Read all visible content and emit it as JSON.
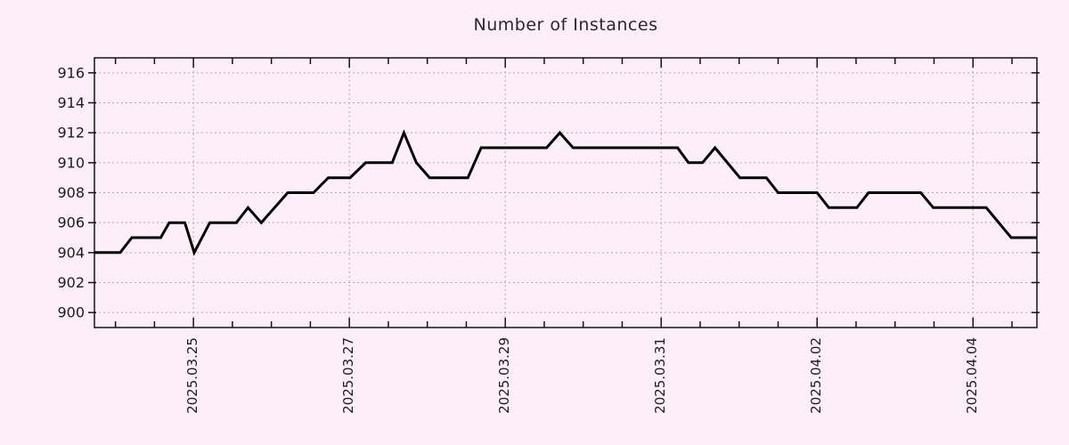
{
  "page": {
    "background_color": "#fceff9"
  },
  "chart_data": {
    "type": "line",
    "title": "Number of Instances",
    "legend": "none",
    "grid": {
      "style": "dotted",
      "color": "#b1abb1",
      "x_major": true,
      "y_major": true
    },
    "x_axis": {
      "unit": "days since 2025-03-23 00:00",
      "range": [
        0.73,
        12.82
      ],
      "minor_tick_step": 0.5,
      "major_ticks": [
        {
          "t": 2,
          "label": "2025.03.25"
        },
        {
          "t": 4,
          "label": "2025.03.27"
        },
        {
          "t": 6,
          "label": "2025.03.29"
        },
        {
          "t": 8,
          "label": "2025.03.31"
        },
        {
          "t": 10,
          "label": "2025.04.02"
        },
        {
          "t": 12,
          "label": "2025.04.04"
        }
      ]
    },
    "y_axis": {
      "range": [
        899,
        917
      ],
      "ticks": [
        900,
        902,
        904,
        906,
        908,
        910,
        912,
        914,
        916
      ]
    },
    "series": [
      {
        "name": "instances",
        "color": "#000000",
        "line_width": 3,
        "points": [
          [
            0.73,
            904
          ],
          [
            1.06,
            904
          ],
          [
            1.21,
            905
          ],
          [
            1.58,
            905
          ],
          [
            1.69,
            906
          ],
          [
            1.89,
            906
          ],
          [
            2.01,
            904
          ],
          [
            2.21,
            906
          ],
          [
            2.55,
            906
          ],
          [
            2.7,
            907
          ],
          [
            2.87,
            906
          ],
          [
            3.21,
            908
          ],
          [
            3.54,
            908
          ],
          [
            3.73,
            909
          ],
          [
            4.01,
            909
          ],
          [
            4.21,
            910
          ],
          [
            4.55,
            910
          ],
          [
            4.7,
            912
          ],
          [
            4.86,
            910
          ],
          [
            5.03,
            909
          ],
          [
            5.52,
            909
          ],
          [
            5.69,
            911
          ],
          [
            6.53,
            911
          ],
          [
            6.7,
            912
          ],
          [
            6.87,
            911
          ],
          [
            8.21,
            911
          ],
          [
            8.35,
            910
          ],
          [
            8.53,
            910
          ],
          [
            8.69,
            911
          ],
          [
            9.01,
            909
          ],
          [
            9.35,
            909
          ],
          [
            9.5,
            908
          ],
          [
            10.0,
            908
          ],
          [
            10.15,
            907
          ],
          [
            10.51,
            907
          ],
          [
            10.66,
            908
          ],
          [
            11.33,
            908
          ],
          [
            11.49,
            907
          ],
          [
            12.17,
            907
          ],
          [
            12.49,
            905
          ],
          [
            12.82,
            905
          ]
        ]
      }
    ],
    "axis_color": "#141414",
    "text_color": "#1c1c1c"
  }
}
